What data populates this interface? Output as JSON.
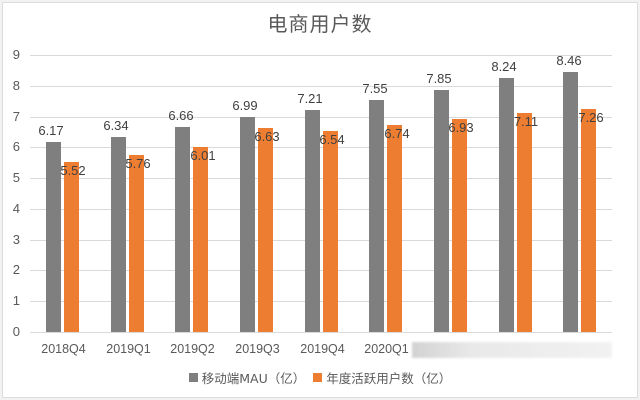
{
  "chart_data": {
    "type": "bar",
    "title": "电商用户数",
    "categories": [
      "2018Q4",
      "2019Q1",
      "2019Q2",
      "2019Q3",
      "2019Q4",
      "2020Q1",
      "",
      "",
      ""
    ],
    "series": [
      {
        "name": "移动端MAU（亿）",
        "color": "#7f7f7f",
        "values": [
          6.17,
          6.34,
          6.66,
          6.99,
          7.21,
          7.55,
          7.85,
          8.24,
          8.46
        ]
      },
      {
        "name": "年度活跃用户数（亿）",
        "color": "#ed7d31",
        "values": [
          5.52,
          5.76,
          6.01,
          6.63,
          6.54,
          6.74,
          6.93,
          7.11,
          7.26
        ]
      }
    ],
    "xlabel": "",
    "ylabel": "",
    "ylim": [
      0,
      9
    ],
    "yticks": [
      0,
      1,
      2,
      3,
      4,
      5,
      6,
      7,
      8,
      9
    ],
    "grid": true,
    "legend_position": "bottom"
  },
  "legend": {
    "items": [
      {
        "label": "移动端MAU（亿）",
        "color": "#7f7f7f"
      },
      {
        "label": "年度活跃用户数（亿）",
        "color": "#ed7d31"
      }
    ]
  }
}
